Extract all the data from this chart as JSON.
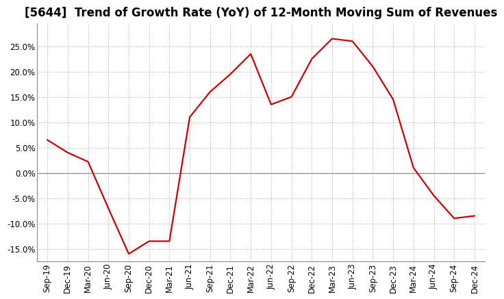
{
  "title": "[5644]  Trend of Growth Rate (YoY) of 12-Month Moving Sum of Revenues",
  "line_color": "#CC0000",
  "background_color": "#FFFFFF",
  "grid_color": "#AAAAAA",
  "x_labels": [
    "Sep-19",
    "Dec-19",
    "Mar-20",
    "Jun-20",
    "Sep-20",
    "Dec-20",
    "Mar-21",
    "Jun-21",
    "Sep-21",
    "Dec-21",
    "Mar-22",
    "Jun-22",
    "Sep-22",
    "Dec-22",
    "Mar-23",
    "Jun-23",
    "Sep-23",
    "Dec-23",
    "Mar-24",
    "Jun-24",
    "Sep-24",
    "Dec-24"
  ],
  "y_values": [
    6.5,
    4.0,
    2.2,
    -7.0,
    -16.0,
    -13.5,
    -13.5,
    11.0,
    16.0,
    19.5,
    23.5,
    13.5,
    15.0,
    22.5,
    26.5,
    26.0,
    21.0,
    14.5,
    1.0,
    -4.5,
    -9.0,
    -8.5
  ],
  "ylim": [
    -17.5,
    29.5
  ],
  "yticks": [
    -15.0,
    -10.0,
    -5.0,
    0.0,
    5.0,
    10.0,
    15.0,
    20.0,
    25.0
  ],
  "title_fontsize": 12,
  "tick_fontsize": 8.5,
  "line_width": 1.6
}
